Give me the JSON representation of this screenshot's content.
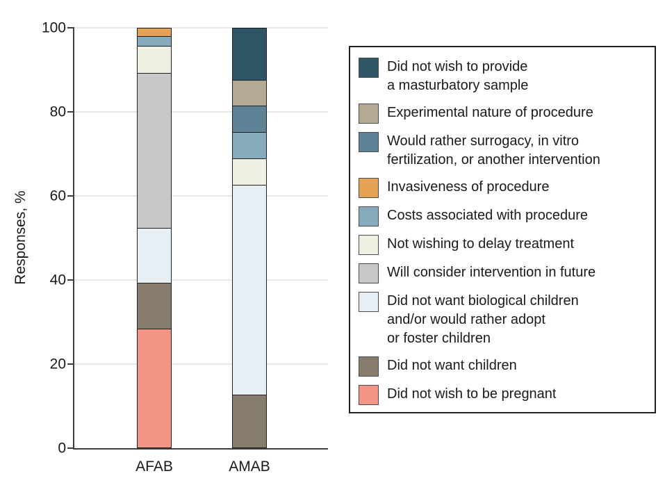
{
  "chart_data": {
    "type": "bar",
    "subtype": "stacked-vertical-100pct",
    "title": "",
    "ylabel": "Responses, %",
    "xlabel": "",
    "ylim": [
      0,
      100
    ],
    "yticks": [
      0,
      20,
      40,
      60,
      80,
      100
    ],
    "grid": "horizontal",
    "legend_position": "right",
    "categories": [
      "AFAB",
      "AMAB"
    ],
    "colors": {
      "axis": "#3d3d3d",
      "grid": "#e7e7e7",
      "bar_border": "#202020",
      "text": "#1a1a1a",
      "legend_border": "#1f1f1f"
    },
    "segments": [
      {
        "label": "Did not wish to provide\na masturbatory sample",
        "color": "#2f5666",
        "values": [
          0,
          12.5
        ]
      },
      {
        "label": "Experimental nature of procedure",
        "color": "#b4a993",
        "values": [
          0,
          6.25
        ]
      },
      {
        "label": "Would rather surrogacy, in vitro\nfertilization, or another intervention",
        "color": "#5e8396",
        "values": [
          0,
          6.25
        ]
      },
      {
        "label": "Invasiveness of procedure",
        "color": "#e5a254",
        "values": [
          2.2,
          0
        ]
      },
      {
        "label": "Costs associated with procedure",
        "color": "#85abbd",
        "values": [
          2.2,
          6.25
        ]
      },
      {
        "label": "Not wishing to delay treatment",
        "color": "#f0efe3",
        "values": [
          6.5,
          6.25
        ]
      },
      {
        "label": "Will consider intervention in future",
        "color": "#c7c8ca",
        "values": [
          37.0,
          0
        ]
      },
      {
        "label": "Did not want biological children\nand/or would rather adopt\nor foster children",
        "color": "#e7eff4",
        "values": [
          13.0,
          50
        ]
      },
      {
        "label": "Did not want children",
        "color": "#877d6e",
        "values": [
          10.9,
          12.5
        ]
      },
      {
        "label": "Did not wish to be pregnant",
        "color": "#f29586",
        "values": [
          28.3,
          0
        ]
      }
    ]
  }
}
